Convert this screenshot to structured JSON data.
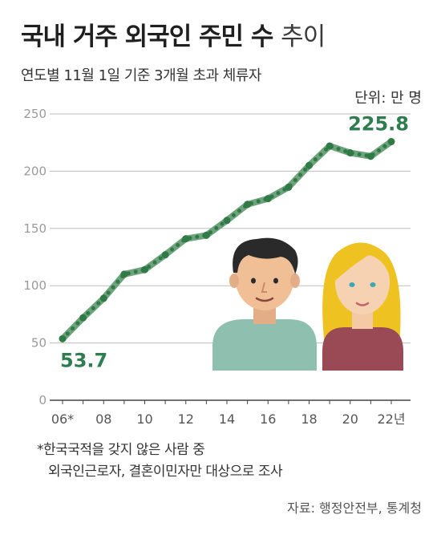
{
  "header": {
    "title_bold": "국내 거주 외국인 주민 수",
    "title_light": "추이",
    "subtitle": "연도별 11월 1일 기준 3개월 초과 체류자",
    "unit": "단위: 만 명"
  },
  "footer": {
    "note_line1": "*한국국적을 갖지 않은 사람 중",
    "note_line2": "외국인근로자, 결혼이민자만 대상으로 조사",
    "source": "자료: 행정안전부, 통계청"
  },
  "colors": {
    "line": "#6fa37e",
    "dots": "#2f7a45",
    "label": "#2e7d4f",
    "grid": "#bdbdbd"
  },
  "illustration": {
    "icons": [
      "man-avatar-icon",
      "woman-avatar-icon"
    ]
  },
  "chart_data": {
    "type": "line",
    "x": [
      2006,
      2007,
      2008,
      2009,
      2010,
      2011,
      2012,
      2013,
      2014,
      2015,
      2016,
      2017,
      2018,
      2019,
      2020,
      2021,
      2022
    ],
    "xtick_values": [
      2006,
      2008,
      2010,
      2012,
      2014,
      2016,
      2018,
      2020,
      2022
    ],
    "xtick_labels": [
      "06*",
      "08",
      "10",
      "12",
      "14",
      "16",
      "18",
      "20",
      "22년"
    ],
    "values": [
      53.7,
      72,
      89,
      110,
      114,
      127,
      141,
      144,
      157,
      171,
      176,
      186,
      205,
      222,
      216,
      213,
      225.8
    ],
    "ylim": [
      0,
      250
    ],
    "yticks": [
      0,
      50,
      100,
      150,
      200,
      250
    ],
    "data_labels": [
      {
        "index": 0,
        "text": "53.7"
      },
      {
        "index": 16,
        "text": "225.8"
      }
    ],
    "grid": true
  }
}
